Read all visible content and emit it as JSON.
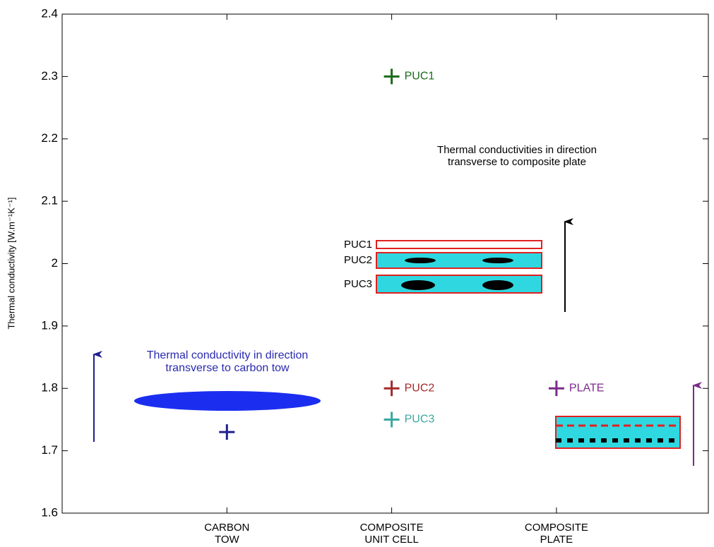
{
  "chart_data": {
    "type": "scatter",
    "y_label": "Thermal conductivity [W.m⁻¹K⁻¹]",
    "categories": [
      "CARBON\nTOW",
      "COMPOSITE\nUNIT CELL",
      "COMPOSITE\nPLATE"
    ],
    "ylim": [
      1.6,
      2.4
    ],
    "yticks": [
      1.6,
      1.7,
      1.8,
      1.9,
      2,
      2.1,
      2.2,
      2.3,
      2.4
    ],
    "series": [
      {
        "color": "#1f1f8f",
        "values": [
          1.73,
          null,
          null
        ]
      },
      {
        "name": "PUC1",
        "color": "#1a6b1a",
        "values": [
          null,
          2.3,
          null
        ]
      },
      {
        "name": "PUC2",
        "color": "#a32a2a",
        "values": [
          null,
          1.8,
          null
        ]
      },
      {
        "name": "PUC3",
        "color": "#3aa8a0",
        "values": [
          null,
          1.75,
          null
        ]
      },
      {
        "name": "PLATE",
        "color": "#7b2a8c",
        "values": [
          null,
          null,
          1.8
        ]
      }
    ],
    "annotations": [
      {
        "text": "Thermal conductivity in direction\ntransverse to carbon tow",
        "color": "#2a2ab0"
      },
      {
        "text": "Thermal conductivities in direction\ntransverse to composite plate",
        "color": "#000000"
      }
    ],
    "inset_labels": [
      "PUC1",
      "PUC2",
      "PUC3"
    ]
  }
}
